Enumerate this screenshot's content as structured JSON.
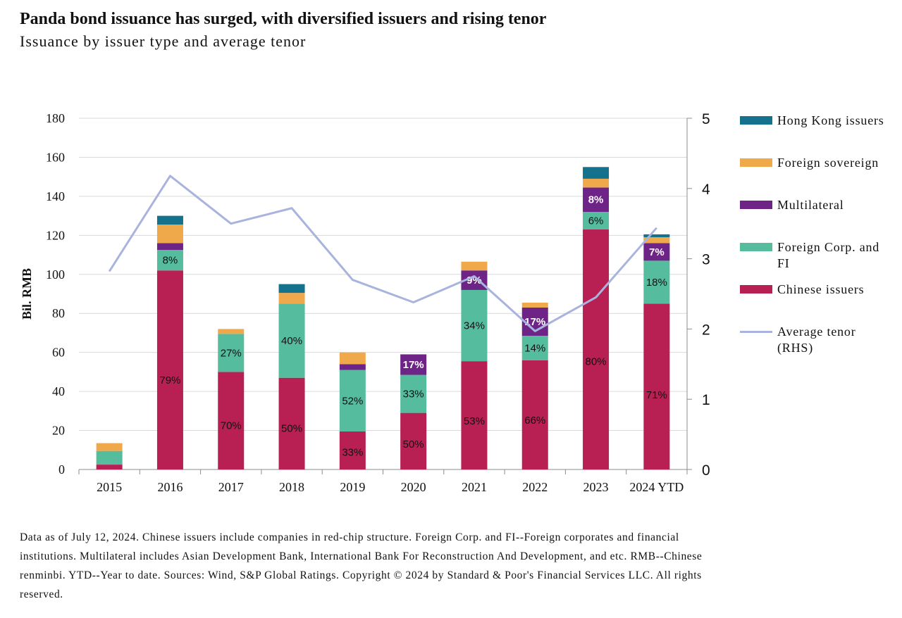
{
  "title": "Panda bond issuance has surged, with diversified issuers and rising tenor",
  "subtitle": "Issuance by issuer type and average tenor",
  "notes": "Data as of July 12, 2024. Chinese issuers include companies in red-chip structure. Foreign Corp. and FI--Foreign corporates and financial institutions. Multilateral includes Asian Development Bank, International Bank For Reconstruction And Development, and etc. RMB--Chinese renminbi. YTD--Year to date. Sources: Wind, S&P Global Ratings. Copyright © 2024 by Standard & Poor's Financial Services LLC. All rights reserved.",
  "legend": [
    {
      "name": "Hong Kong issuers",
      "color": "#14728c",
      "kind": "box"
    },
    {
      "name": "Foreign sovereign",
      "color": "#f0a94a",
      "kind": "box"
    },
    {
      "name": "Multilateral",
      "color": "#6e2387",
      "kind": "box"
    },
    {
      "name": "Foreign Corp. and FI",
      "color": "#55bc9d",
      "kind": "box"
    },
    {
      "name": "Chinese issuers",
      "color": "#b81f52",
      "kind": "box"
    },
    {
      "name": "Average tenor (RHS)",
      "color": "#a9b4de",
      "kind": "line"
    }
  ],
  "chart_data": {
    "type": "bar",
    "stacked": true,
    "categories": [
      "2015",
      "2016",
      "2017",
      "2018",
      "2019",
      "2020",
      "2021",
      "2022",
      "2023",
      "2024 YTD"
    ],
    "ylabel": "Bil. RMB",
    "ylim": [
      0,
      180
    ],
    "yticks": [
      0,
      20,
      40,
      60,
      80,
      100,
      120,
      140,
      160,
      180
    ],
    "y2lim": [
      0,
      5
    ],
    "y2ticks": [
      0,
      1,
      2,
      3,
      4,
      5
    ],
    "grid": true,
    "legend_position": "right",
    "series": [
      {
        "name": "Chinese issuers",
        "color": "#b81f52",
        "values": [
          2.5,
          102,
          50,
          47,
          19.5,
          29,
          55.5,
          56,
          123,
          85
        ],
        "labels": [
          "",
          "79%",
          "70%",
          "50%",
          "33%",
          "50%",
          "53%",
          "66%",
          "80%",
          "71%"
        ],
        "label_color": "#111111"
      },
      {
        "name": "Foreign Corp. and FI",
        "color": "#55bc9d",
        "values": [
          7,
          10.5,
          19.5,
          38,
          31.5,
          19.5,
          36.5,
          12.5,
          9,
          22
        ],
        "labels": [
          "",
          "8%",
          "27%",
          "40%",
          "52%",
          "33%",
          "34%",
          "14%",
          "6%",
          "18%"
        ],
        "label_color": "#111111"
      },
      {
        "name": "Multilateral",
        "color": "#6e2387",
        "values": [
          0,
          3.5,
          0,
          0,
          3,
          10.5,
          10,
          14.5,
          12.5,
          9
        ],
        "labels": [
          "",
          "",
          "",
          "",
          "",
          "17%",
          "9%",
          "17%",
          "8%",
          "7%"
        ],
        "label_color": "#ffffff"
      },
      {
        "name": "Foreign sovereign",
        "color": "#f0a94a",
        "values": [
          4,
          9.5,
          2.5,
          5.5,
          6,
          0,
          4.5,
          2.5,
          4.5,
          3
        ],
        "labels": [
          "",
          "",
          "",
          "",
          "",
          "",
          "",
          "",
          "",
          ""
        ],
        "label_color": "#111111"
      },
      {
        "name": "Hong Kong issuers",
        "color": "#14728c",
        "values": [
          0,
          4.5,
          0,
          4.5,
          0,
          0,
          0,
          0,
          6,
          1.5
        ],
        "labels": [
          "",
          "",
          "",
          "",
          "",
          "",
          "",
          "",
          "",
          ""
        ],
        "label_color": "#111111"
      }
    ],
    "line_series": {
      "name": "Average tenor (RHS)",
      "axis": "right",
      "color": "#a9b4de",
      "values": [
        2.82,
        4.18,
        3.5,
        3.72,
        2.7,
        2.38,
        2.75,
        1.97,
        2.45,
        3.44
      ]
    }
  }
}
